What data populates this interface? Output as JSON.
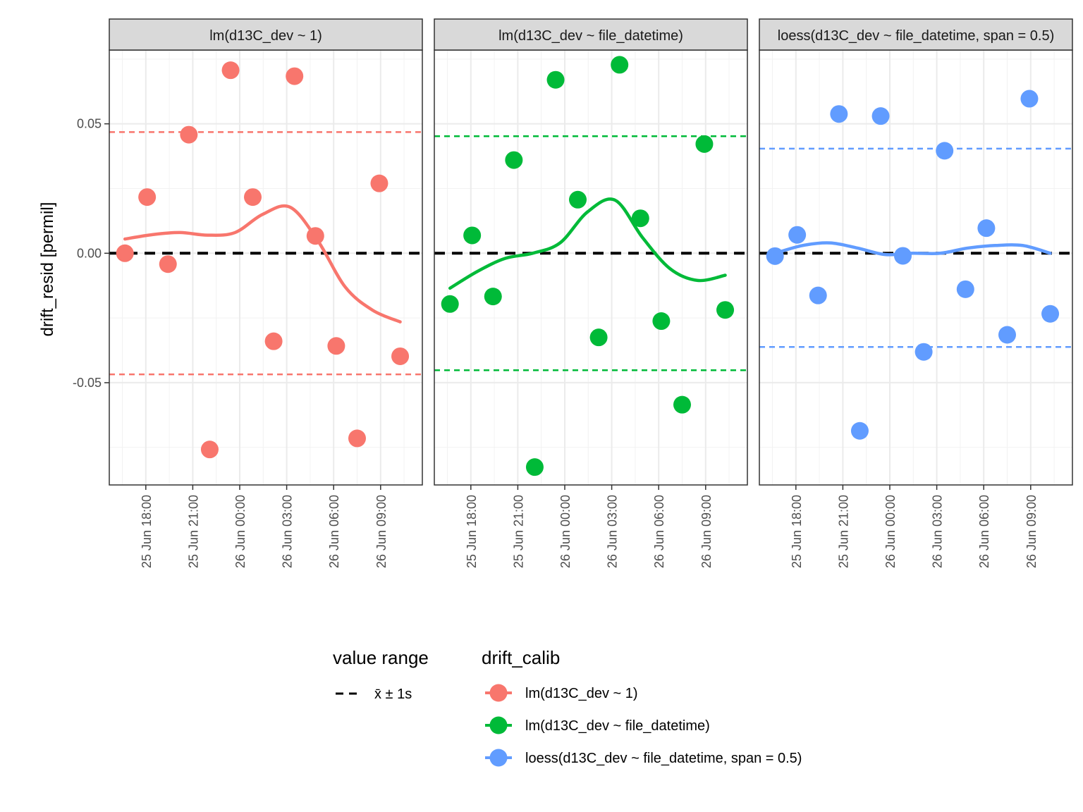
{
  "chart_data": {
    "type": "scatter",
    "ylabel": "drift_resid [permil]",
    "xlabel": "",
    "ylim": [
      -0.0895,
      0.0785
    ],
    "xlim": [
      "2020-06-25 15:40",
      "2020-06-26 11:40"
    ],
    "x_tick_labels": [
      "25 Jun 18:00",
      "25 Jun 21:00",
      "26 Jun 00:00",
      "26 Jun 03:00",
      "26 Jun 06:00",
      "26 Jun 09:00"
    ],
    "x_tick_values": [
      "2020-06-25 18:00",
      "2020-06-25 21:00",
      "2020-06-26 00:00",
      "2020-06-26 03:00",
      "2020-06-26 06:00",
      "2020-06-26 09:00"
    ],
    "y_tick_labels": [
      "0.05",
      "0.00",
      "-0.05"
    ],
    "y_tick_values": [
      0.05,
      0.0,
      -0.05
    ],
    "grid": true,
    "legend_position": "bottom",
    "reference_line": 0,
    "x": [
      "2020-06-25 16:40",
      "2020-06-25 18:05",
      "2020-06-25 19:25",
      "2020-06-25 20:45",
      "2020-06-25 22:05",
      "2020-06-25 23:25",
      "2020-06-26 00:50",
      "2020-06-26 02:10",
      "2020-06-26 03:30",
      "2020-06-26 04:50",
      "2020-06-26 06:10",
      "2020-06-26 07:30",
      "2020-06-26 08:55",
      "2020-06-26 10:15"
    ],
    "panels": [
      {
        "strip": "lm(d13C_dev ~ 1)",
        "color": "#F8766D",
        "y": [
          0.0,
          0.0217,
          -0.0042,
          0.0458,
          -0.0758,
          0.0707,
          0.0217,
          -0.034,
          0.0684,
          0.0067,
          -0.0358,
          -0.0715,
          0.027,
          -0.0398
        ],
        "range": [
          -0.0468,
          0.0468
        ],
        "smooth": [
          0.0055,
          0.0072,
          0.008,
          0.007,
          0.008,
          0.015,
          0.0178,
          0.005,
          -0.013,
          -0.022,
          -0.0265
        ]
      },
      {
        "strip": "lm(d13C_dev ~ file_datetime)",
        "color": "#00BA38",
        "y": [
          -0.0196,
          0.0069,
          -0.0167,
          0.036,
          -0.0826,
          0.067,
          0.0207,
          -0.0325,
          0.0728,
          0.0135,
          -0.0262,
          -0.0585,
          0.0422,
          -0.0219
        ],
        "range": [
          -0.0452,
          0.0452
        ],
        "smooth": [
          -0.0135,
          -0.007,
          -0.002,
          0.0,
          0.004,
          0.016,
          0.0205,
          0.006,
          -0.006,
          -0.0105,
          -0.0085
        ]
      },
      {
        "strip": "loess(d13C_dev ~ file_datetime, span = 0.5)",
        "color": "#619CFF",
        "y": [
          -0.0011,
          0.0071,
          -0.0163,
          0.0538,
          -0.0686,
          0.053,
          -0.001,
          -0.0381,
          0.0396,
          -0.0139,
          0.0097,
          -0.0315,
          0.0597,
          -0.0234
        ],
        "range": [
          -0.0362,
          0.0404
        ],
        "smooth": [
          0.0,
          0.003,
          0.004,
          0.002,
          -0.0005,
          0.0,
          0.0,
          0.002,
          0.003,
          0.003,
          0.0
        ]
      }
    ]
  },
  "legend": {
    "value_range_title": "value range",
    "value_range_label": "x̄ ± 1s",
    "drift_title": "drift_calib",
    "drift_items": [
      {
        "label": "lm(d13C_dev ~ 1)",
        "color": "#F8766D"
      },
      {
        "label": "lm(d13C_dev ~ file_datetime)",
        "color": "#00BA38"
      },
      {
        "label": "loess(d13C_dev ~ file_datetime, span = 0.5)",
        "color": "#619CFF"
      }
    ]
  }
}
